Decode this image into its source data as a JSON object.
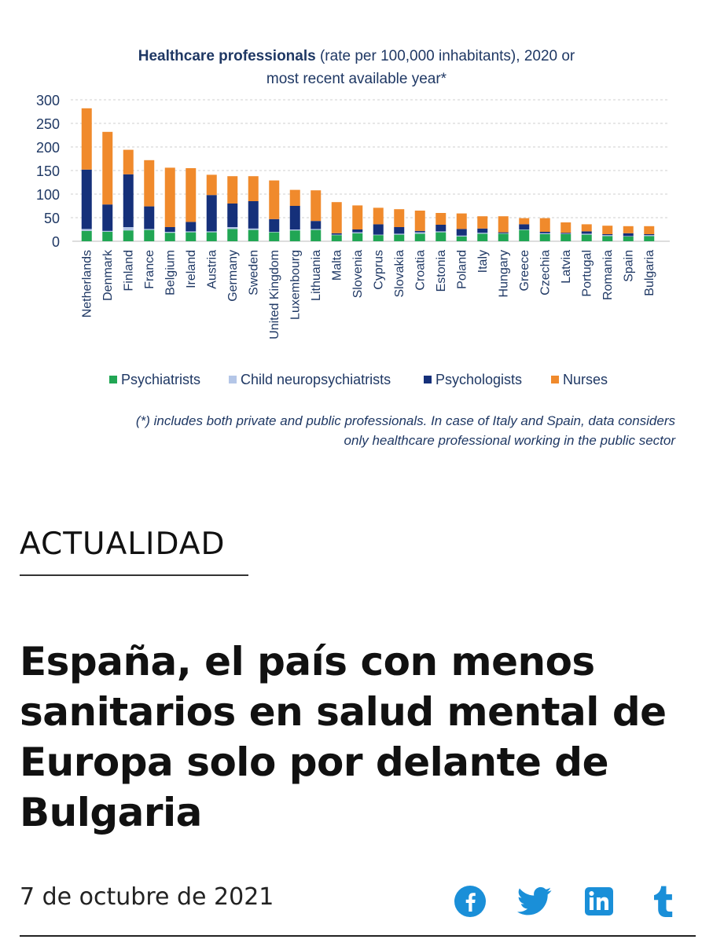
{
  "article": {
    "section": "ACTUALIDAD",
    "headline": "España, el país con menos sanitarios en salud mental de Europa solo por delante de Bulgaria",
    "date": "7 de octubre de 2021",
    "share_icons": [
      "facebook-icon",
      "twitter-icon",
      "linkedin-icon",
      "tumblr-icon"
    ],
    "accent_color": "#1a8fd8"
  },
  "chart_data": {
    "type": "bar",
    "stacked": true,
    "title_bold": "Healthcare professionals",
    "title_rest": " (rate per 100,000 inhabitants), 2020 or",
    "title_line2": "most recent available year*",
    "footnote_line1": "(*) includes both private and public professionals. In case of Italy and Spain, data considers",
    "footnote_line2": "only healthcare professional working in the public sector",
    "ylim": [
      0,
      300
    ],
    "yticks": [
      0,
      50,
      100,
      150,
      200,
      250,
      300
    ],
    "grid": true,
    "legend_position": "bottom",
    "categories": [
      "Netherlands",
      "Denmark",
      "Finland",
      "France",
      "Belgium",
      "Ireland",
      "Austria",
      "Germany",
      "Sweden",
      "United Kingdom",
      "Luxembourg",
      "Lithuania",
      "Malta",
      "Slovenia",
      "Cyprus",
      "Slovakia",
      "Croatia",
      "Estonia",
      "Poland",
      "Italy",
      "Hungary",
      "Greece",
      "Czechia",
      "Latvia",
      "Portugal",
      "Romania",
      "Spain",
      "Bulgaria"
    ],
    "series": [
      {
        "name": "Psychiatrists",
        "color": "#21a654",
        "values": [
          22,
          20,
          23,
          24,
          18,
          19,
          19,
          26,
          24,
          19,
          23,
          24,
          13,
          17,
          13,
          14,
          16,
          19,
          10,
          16,
          16,
          24,
          15,
          15,
          14,
          11,
          10,
          11
        ]
      },
      {
        "name": "Child neuropsychiatrists",
        "color": "#b4c6e7",
        "values": [
          4,
          2,
          7,
          2,
          2,
          2,
          2,
          4,
          3,
          1,
          2,
          2,
          1,
          2,
          1,
          2,
          3,
          2,
          2,
          2,
          1,
          1,
          2,
          1,
          2,
          2,
          1,
          2
        ]
      },
      {
        "name": "Psychologists",
        "color": "#15307a",
        "values": [
          126,
          56,
          112,
          48,
          10,
          20,
          77,
          50,
          58,
          27,
          50,
          17,
          3,
          6,
          22,
          14,
          3,
          14,
          14,
          9,
          2,
          11,
          3,
          2,
          5,
          2,
          6,
          2
        ]
      },
      {
        "name": "Nurses",
        "color": "#f08a2c",
        "values": [
          130,
          154,
          52,
          98,
          126,
          114,
          43,
          58,
          53,
          82,
          34,
          65,
          66,
          51,
          35,
          38,
          43,
          25,
          33,
          26,
          34,
          13,
          29,
          22,
          15,
          18,
          15,
          17
        ]
      }
    ]
  }
}
